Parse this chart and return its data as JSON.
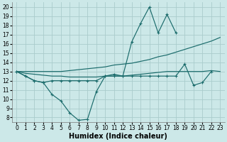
{
  "bg_color": "#cce8e8",
  "grid_color": "#aacccc",
  "line_color": "#1a6b6b",
  "x_values": [
    0,
    1,
    2,
    3,
    4,
    5,
    6,
    7,
    8,
    9,
    10,
    11,
    12,
    13,
    14,
    15,
    16,
    17,
    18,
    19,
    20,
    21,
    22,
    23
  ],
  "series1": [
    13,
    12.5,
    12,
    11.8,
    10.5,
    9.8,
    8.5,
    7.7,
    7.8,
    10.8,
    12.5,
    12.7,
    12.5,
    16.2,
    18.2,
    20.0,
    17.2,
    19.2,
    17.2,
    null,
    null,
    null,
    null,
    null
  ],
  "series2": [
    13,
    12.5,
    12,
    11.8,
    12.0,
    12.0,
    12.0,
    12.0,
    12.0,
    12.0,
    12.5,
    12.5,
    12.5,
    12.5,
    12.5,
    12.5,
    12.5,
    12.5,
    12.5,
    13.8,
    11.5,
    11.8,
    13.0,
    null
  ],
  "series3": [
    13,
    12.8,
    12.7,
    12.6,
    12.5,
    12.5,
    12.4,
    12.4,
    12.4,
    12.4,
    12.5,
    12.5,
    12.5,
    12.6,
    12.7,
    12.8,
    12.9,
    13.0,
    13.0,
    13.0,
    13.0,
    13.0,
    13.1,
    13.0
  ],
  "series4": [
    13,
    13.0,
    13.0,
    13.0,
    13.0,
    13.0,
    13.1,
    13.2,
    13.3,
    13.4,
    13.5,
    13.7,
    13.8,
    13.9,
    14.1,
    14.3,
    14.6,
    14.8,
    15.1,
    15.4,
    15.7,
    16.0,
    16.3,
    16.7
  ],
  "xlim": [
    -0.5,
    23.5
  ],
  "ylim": [
    7.5,
    20.5
  ],
  "yticks": [
    8,
    9,
    10,
    11,
    12,
    13,
    14,
    15,
    16,
    17,
    18,
    19,
    20
  ],
  "xticks": [
    0,
    1,
    2,
    3,
    4,
    5,
    6,
    7,
    8,
    9,
    10,
    11,
    12,
    13,
    14,
    15,
    16,
    17,
    18,
    19,
    20,
    21,
    22,
    23
  ],
  "xlabel": "Humidex (Indice chaleur)",
  "xlabel_fontsize": 7.0,
  "tick_fontsize": 5.5
}
